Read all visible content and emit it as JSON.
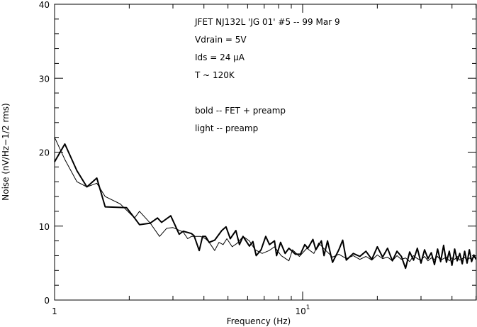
{
  "chart_data": {
    "type": "line",
    "xlabel": "Frequency (Hz)",
    "ylabel": "Noise (nV/Hz−1/2 rms)",
    "x_scale": "log",
    "xlim": [
      1,
      50
    ],
    "ylim": [
      0,
      40
    ],
    "y_ticks": [
      "0",
      "10",
      "20",
      "30",
      "40"
    ],
    "y_tick_values": [
      0,
      10,
      20,
      30,
      40
    ],
    "x_ticks": [
      {
        "value": 1,
        "label": "1",
        "exp": ""
      },
      {
        "value": 10,
        "label": "10",
        "exp": "1"
      }
    ],
    "grid": false,
    "annotations": [
      "JFET NJ132L 'JG 01' #5 -- 99 Mar 9",
      "Vdrain = 5V",
      "Ids = 24 μA",
      "T ~ 120K",
      "",
      "bold -- FET + preamp",
      "light -- preamp"
    ],
    "series": [
      {
        "style": "bold",
        "color": "#000000",
        "points": [
          [
            1,
            18.7
          ],
          [
            1.1,
            21.1
          ],
          [
            1.23,
            17.5
          ],
          [
            1.35,
            15.3
          ],
          [
            1.48,
            16.5
          ],
          [
            1.6,
            12.6
          ],
          [
            1.95,
            12.5
          ],
          [
            2.1,
            11.1
          ],
          [
            2.2,
            10.2
          ],
          [
            2.43,
            10.4
          ],
          [
            2.6,
            11.1
          ],
          [
            2.7,
            10.5
          ],
          [
            2.94,
            11.4
          ],
          [
            3.18,
            8.9
          ],
          [
            3.3,
            9.3
          ],
          [
            3.56,
            9.0
          ],
          [
            3.65,
            8.7
          ],
          [
            3.83,
            6.7
          ],
          [
            3.95,
            8.6
          ],
          [
            4.06,
            8.6
          ],
          [
            4.2,
            7.8
          ],
          [
            4.42,
            8.1
          ],
          [
            4.72,
            9.4
          ],
          [
            4.91,
            9.9
          ],
          [
            5.11,
            8.3
          ],
          [
            5.38,
            9.4
          ],
          [
            5.56,
            7.5
          ],
          [
            5.75,
            8.6
          ],
          [
            6.1,
            7.3
          ],
          [
            6.3,
            7.9
          ],
          [
            6.5,
            6.0
          ],
          [
            6.8,
            6.8
          ],
          [
            7.1,
            8.6
          ],
          [
            7.35,
            7.5
          ],
          [
            7.7,
            8.0
          ],
          [
            7.85,
            6.0
          ],
          [
            8.15,
            7.8
          ],
          [
            8.5,
            6.3
          ],
          [
            8.8,
            7.0
          ],
          [
            9.35,
            6.2
          ],
          [
            9.8,
            6.2
          ],
          [
            10.2,
            7.5
          ],
          [
            10.5,
            7.0
          ],
          [
            11.0,
            8.2
          ],
          [
            11.3,
            6.8
          ],
          [
            11.9,
            8.0
          ],
          [
            12.2,
            6.0
          ],
          [
            12.6,
            8.0
          ],
          [
            13.0,
            6.0
          ],
          [
            13.2,
            5.1
          ],
          [
            14,
            6.8
          ],
          [
            14.5,
            8.1
          ],
          [
            15,
            5.4
          ],
          [
            16,
            6.3
          ],
          [
            17,
            5.9
          ],
          [
            18,
            6.6
          ],
          [
            19,
            5.5
          ],
          [
            20,
            7.2
          ],
          [
            21,
            5.8
          ],
          [
            22,
            7.0
          ],
          [
            23,
            5.3
          ],
          [
            24,
            6.6
          ],
          [
            25,
            5.9
          ],
          [
            26,
            4.3
          ],
          [
            27,
            6.5
          ],
          [
            28,
            5.4
          ],
          [
            29,
            7.0
          ],
          [
            30,
            5.0
          ],
          [
            31,
            6.8
          ],
          [
            32,
            5.6
          ],
          [
            33,
            6.4
          ],
          [
            34,
            4.8
          ],
          [
            35,
            6.9
          ],
          [
            36,
            5.2
          ],
          [
            37,
            7.4
          ],
          [
            38,
            5.1
          ],
          [
            39,
            6.6
          ],
          [
            40,
            4.7
          ],
          [
            41,
            6.9
          ],
          [
            42,
            5.3
          ],
          [
            43,
            6.3
          ],
          [
            44,
            4.9
          ],
          [
            45,
            6.6
          ],
          [
            46,
            5.0
          ],
          [
            47,
            6.8
          ],
          [
            48,
            5.2
          ],
          [
            49,
            6.1
          ],
          [
            50,
            5.5
          ]
        ]
      },
      {
        "style": "light",
        "color": "#000000",
        "points": [
          [
            1,
            22.0
          ],
          [
            1.1,
            19.0
          ],
          [
            1.23,
            16.0
          ],
          [
            1.35,
            15.3
          ],
          [
            1.48,
            15.8
          ],
          [
            1.6,
            14.0
          ],
          [
            1.84,
            13.0
          ],
          [
            2.1,
            11.1
          ],
          [
            2.2,
            12.0
          ],
          [
            2.43,
            10.4
          ],
          [
            2.65,
            8.6
          ],
          [
            2.83,
            9.7
          ],
          [
            3.0,
            9.8
          ],
          [
            3.3,
            9.2
          ],
          [
            3.44,
            8.3
          ],
          [
            3.56,
            8.6
          ],
          [
            3.88,
            8.6
          ],
          [
            4.06,
            8.3
          ],
          [
            4.2,
            7.8
          ],
          [
            4.42,
            6.7
          ],
          [
            4.6,
            7.8
          ],
          [
            4.78,
            7.5
          ],
          [
            4.95,
            8.3
          ],
          [
            5.2,
            7.2
          ],
          [
            5.46,
            7.7
          ],
          [
            5.75,
            8.6
          ],
          [
            6.1,
            8.0
          ],
          [
            6.43,
            6.8
          ],
          [
            6.87,
            6.3
          ],
          [
            7.33,
            6.7
          ],
          [
            7.7,
            7.2
          ],
          [
            8.2,
            6.0
          ],
          [
            8.8,
            5.3
          ],
          [
            9.1,
            6.8
          ],
          [
            9.7,
            5.9
          ],
          [
            10.4,
            7.0
          ],
          [
            11.1,
            6.3
          ],
          [
            11.6,
            7.7
          ],
          [
            12.4,
            6.7
          ],
          [
            13.2,
            5.8
          ],
          [
            14,
            6.2
          ],
          [
            15,
            5.6
          ],
          [
            16,
            6.0
          ],
          [
            17,
            5.5
          ],
          [
            18,
            5.9
          ],
          [
            19,
            5.4
          ],
          [
            20,
            6.1
          ],
          [
            21,
            5.6
          ],
          [
            22,
            5.8
          ],
          [
            23,
            5.3
          ],
          [
            24,
            6.0
          ],
          [
            25,
            5.5
          ],
          [
            26,
            5.7
          ],
          [
            27,
            5.2
          ],
          [
            28,
            6.0
          ],
          [
            29,
            5.6
          ],
          [
            30,
            5.4
          ],
          [
            31,
            5.9
          ],
          [
            32,
            5.3
          ],
          [
            33,
            5.7
          ],
          [
            34,
            5.5
          ],
          [
            35,
            5.9
          ],
          [
            36,
            5.4
          ],
          [
            37,
            5.6
          ],
          [
            38,
            5.8
          ],
          [
            39,
            5.3
          ],
          [
            40,
            5.7
          ],
          [
            41,
            5.5
          ],
          [
            42,
            5.9
          ],
          [
            43,
            5.4
          ],
          [
            44,
            5.6
          ],
          [
            45,
            5.8
          ],
          [
            46,
            5.3
          ],
          [
            47,
            5.7
          ],
          [
            48,
            5.5
          ],
          [
            49,
            5.8
          ],
          [
            50,
            5.6
          ]
        ]
      }
    ]
  }
}
